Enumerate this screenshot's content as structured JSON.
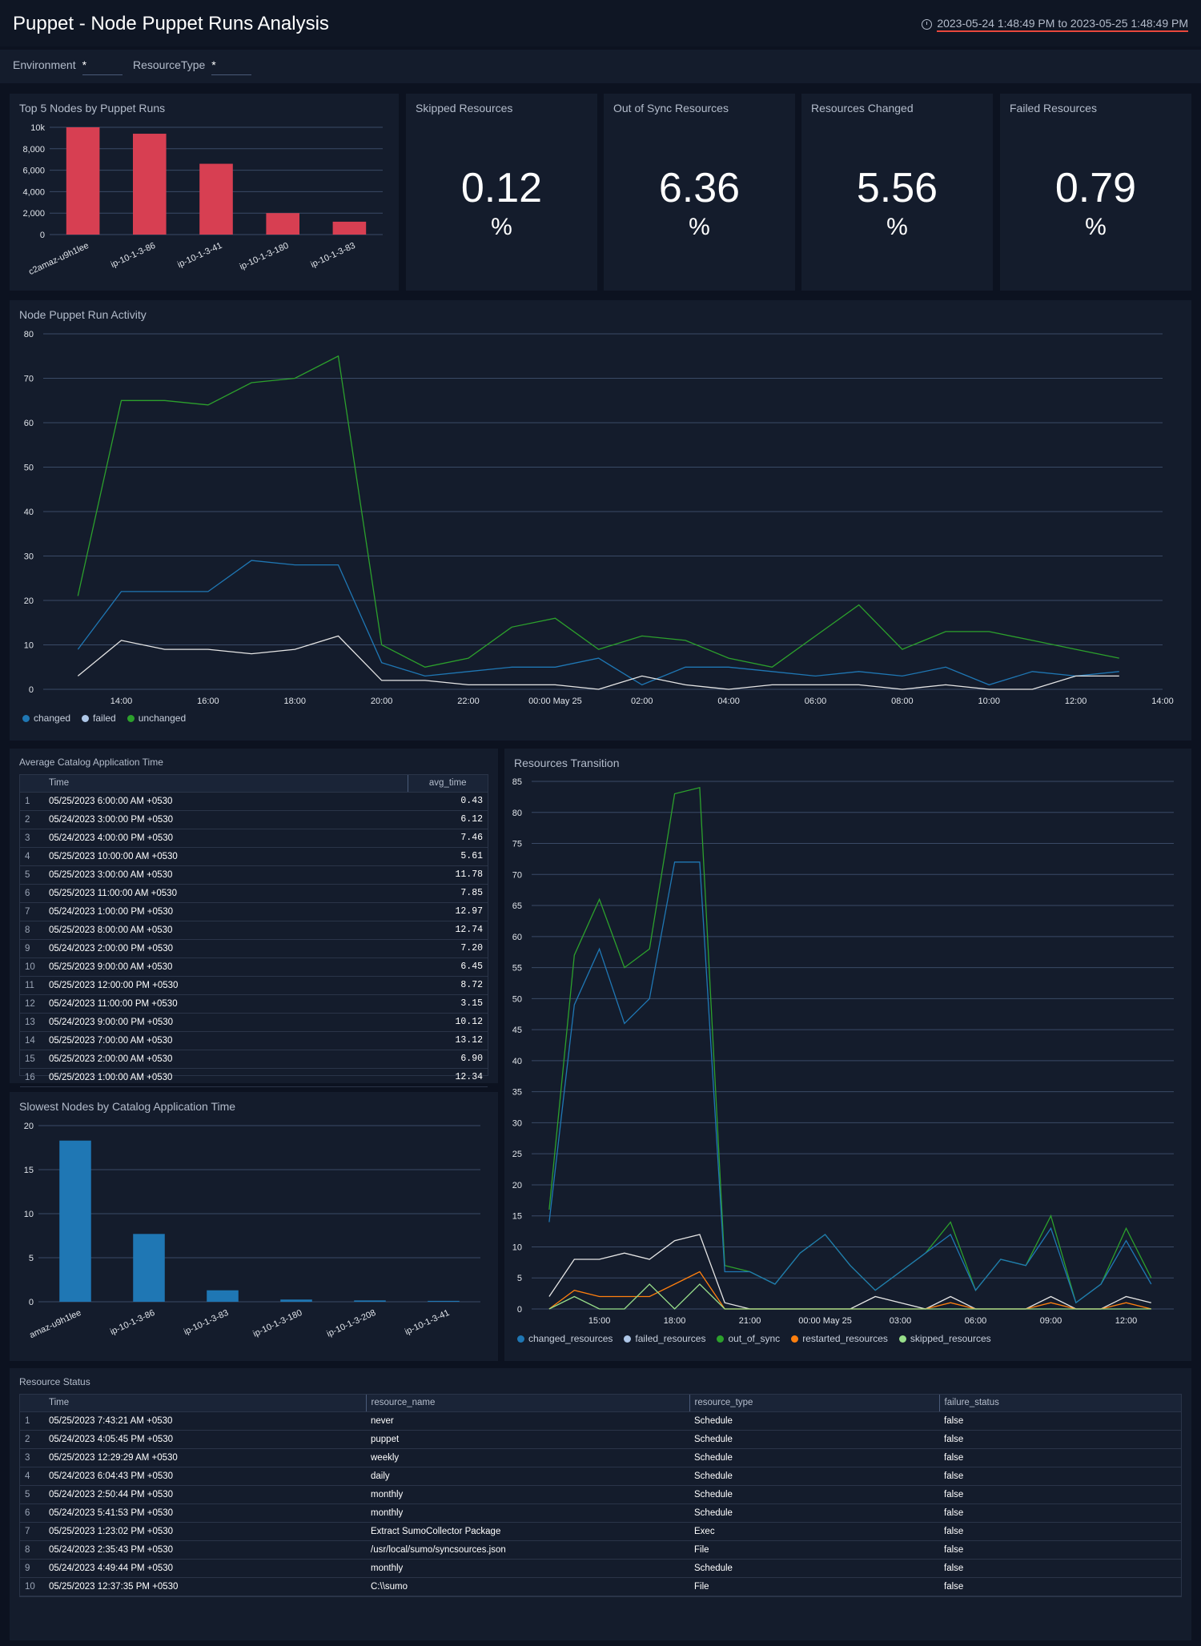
{
  "header": {
    "title": "Puppet - Node Puppet Runs Analysis",
    "time_range": "2023-05-24 1:48:49 PM to 2023-05-25 1:48:49 PM"
  },
  "filters": [
    {
      "label": "Environment",
      "value": "*"
    },
    {
      "label": "ResourceType",
      "value": "*"
    }
  ],
  "stats": [
    {
      "title": "Skipped Resources",
      "value": "0.12",
      "unit": "%"
    },
    {
      "title": "Out of Sync Resources",
      "value": "6.36",
      "unit": "%"
    },
    {
      "title": "Resources Changed",
      "value": "5.56",
      "unit": "%"
    },
    {
      "title": "Failed Resources",
      "value": "0.79",
      "unit": "%"
    }
  ],
  "colors": {
    "bar_red": "#d73f52",
    "bar_blue": "#1f77b4",
    "changed": "#1f77b4",
    "failed": "#aec7e8",
    "unchanged": "#2ca02c",
    "white_line": "#e6e6e6",
    "restarted": "#ff7f0e",
    "skipped": "#98df8a"
  },
  "top_nodes": {
    "title": "Top 5 Nodes by Puppet Runs",
    "chart_data": {
      "type": "bar",
      "categories": [
        "c2amaz-u9h1lee",
        "ip-10-1-3-86",
        "ip-10-1-3-41",
        "ip-10-1-3-180",
        "ip-10-1-3-83"
      ],
      "values": [
        10000,
        9400,
        6600,
        2000,
        1200
      ],
      "ylim": [
        0,
        10000
      ],
      "yticks": [
        0,
        2000,
        4000,
        6000,
        8000,
        10000
      ],
      "ytick_labels": [
        "0",
        "2,000",
        "4,000",
        "6,000",
        "8,000",
        "10k"
      ]
    }
  },
  "activity": {
    "title": "Node Puppet Run Activity",
    "chart_data": {
      "type": "line",
      "x": [
        13,
        14,
        15,
        16,
        17,
        18,
        19,
        20,
        21,
        22,
        23,
        24,
        25,
        26,
        27,
        28,
        29,
        30,
        31,
        32,
        33,
        34,
        35,
        36,
        37
      ],
      "xlim": [
        12.2,
        38
      ],
      "xticks": [
        14,
        16,
        18,
        20,
        22,
        24,
        26,
        28,
        30,
        32,
        34,
        36,
        38
      ],
      "xtick_labels": [
        "14:00",
        "16:00",
        "18:00",
        "20:00",
        "22:00",
        "00:00 May 25",
        "02:00",
        "04:00",
        "06:00",
        "08:00",
        "10:00",
        "12:00",
        "14:00"
      ],
      "ylim": [
        0,
        80
      ],
      "yticks": [
        0,
        10,
        20,
        30,
        40,
        50,
        60,
        70,
        80
      ],
      "series": [
        {
          "name": "unchanged",
          "color": "#2ca02c",
          "values": [
            21,
            65,
            65,
            64,
            69,
            70,
            75,
            10,
            5,
            7,
            14,
            16,
            9,
            12,
            11,
            7,
            5,
            12,
            19,
            9,
            13,
            13,
            11,
            9,
            7
          ]
        },
        {
          "name": "changed",
          "color": "#1f77b4",
          "values": [
            9,
            22,
            22,
            22,
            29,
            28,
            28,
            6,
            3,
            4,
            5,
            5,
            7,
            1,
            5,
            5,
            4,
            3,
            4,
            3,
            5,
            1,
            4,
            3,
            4
          ]
        },
        {
          "name": "failed",
          "color": "#e6e6e6",
          "values": [
            3,
            11,
            9,
            9,
            8,
            9,
            12,
            2,
            2,
            1,
            1,
            1,
            0,
            3,
            1,
            0,
            1,
            1,
            1,
            0,
            1,
            0,
            0,
            3,
            3
          ]
        }
      ],
      "legend": [
        "changed",
        "failed",
        "unchanged"
      ],
      "legend_colors": [
        "#1f77b4",
        "#aec7e8",
        "#2ca02c"
      ]
    }
  },
  "avg_catalog": {
    "title": "Average Catalog Application Time",
    "columns": [
      "Time",
      "avg_time"
    ],
    "rows": [
      [
        "1",
        "05/25/2023 6:00:00 AM +0530",
        "0.43"
      ],
      [
        "2",
        "05/24/2023 3:00:00 PM +0530",
        "6.12"
      ],
      [
        "3",
        "05/24/2023 4:00:00 PM +0530",
        "7.46"
      ],
      [
        "4",
        "05/25/2023 10:00:00 AM +0530",
        "5.61"
      ],
      [
        "5",
        "05/25/2023 3:00:00 AM +0530",
        "11.78"
      ],
      [
        "6",
        "05/25/2023 11:00:00 AM +0530",
        "7.85"
      ],
      [
        "7",
        "05/24/2023 1:00:00 PM +0530",
        "12.97"
      ],
      [
        "8",
        "05/25/2023 8:00:00 AM +0530",
        "12.74"
      ],
      [
        "9",
        "05/24/2023 2:00:00 PM +0530",
        "7.20"
      ],
      [
        "10",
        "05/25/2023 9:00:00 AM +0530",
        "6.45"
      ],
      [
        "11",
        "05/25/2023 12:00:00 PM +0530",
        "8.72"
      ],
      [
        "12",
        "05/24/2023 11:00:00 PM +0530",
        "3.15"
      ],
      [
        "13",
        "05/24/2023 9:00:00 PM +0530",
        "10.12"
      ],
      [
        "14",
        "05/25/2023 7:00:00 AM +0530",
        "13.12"
      ],
      [
        "15",
        "05/25/2023 2:00:00 AM +0530",
        "6.90"
      ],
      [
        "16",
        "05/25/2023 1:00:00 AM +0530",
        "12.34"
      ]
    ]
  },
  "slowest_nodes": {
    "title": "Slowest Nodes by Catalog Application Time",
    "chart_data": {
      "type": "bar",
      "categories": [
        "amaz-u9h1lee",
        "ip-10-1-3-86",
        "ip-10-1-3-83",
        "ip-10-1-3-180",
        "ip-10-1-3-208",
        "ip-10-1-3-41"
      ],
      "values": [
        18.3,
        7.7,
        1.3,
        0.25,
        0.15,
        0.1
      ],
      "ylim": [
        0,
        20
      ],
      "yticks": [
        0,
        5,
        10,
        15,
        20
      ]
    }
  },
  "transition": {
    "title": "Resources Transition",
    "chart_data": {
      "type": "line",
      "x": [
        13,
        14,
        15,
        16,
        17,
        18,
        19,
        20,
        21,
        22,
        23,
        24,
        25,
        26,
        27,
        28,
        29,
        30,
        31,
        32,
        33,
        34,
        35,
        36,
        37
      ],
      "xlim": [
        12.3,
        37.9
      ],
      "xticks": [
        15,
        18,
        21,
        24,
        27,
        30,
        33,
        36
      ],
      "xtick_labels": [
        "15:00",
        "18:00",
        "21:00",
        "00:00 May 25",
        "03:00",
        "06:00",
        "09:00",
        "12:00"
      ],
      "ylim": [
        0,
        85
      ],
      "yticks": [
        0,
        5,
        10,
        15,
        20,
        25,
        30,
        35,
        40,
        45,
        50,
        55,
        60,
        65,
        70,
        75,
        80,
        85
      ],
      "series": [
        {
          "name": "out_of_sync",
          "color": "#2ca02c",
          "values": [
            16,
            57,
            66,
            55,
            58,
            83,
            84,
            7,
            6,
            4,
            9,
            12,
            7,
            3,
            6,
            9,
            14,
            3,
            8,
            7,
            15,
            1,
            4,
            13,
            5
          ]
        },
        {
          "name": "changed_resources",
          "color": "#1f77b4",
          "values": [
            14,
            49,
            58,
            46,
            50,
            72,
            72,
            6,
            6,
            4,
            9,
            12,
            7,
            3,
            6,
            9,
            12,
            3,
            8,
            7,
            13,
            1,
            4,
            11,
            4
          ]
        },
        {
          "name": "failed_resources",
          "color": "#e6e6e6",
          "values": [
            2,
            8,
            8,
            9,
            8,
            11,
            12,
            1,
            0,
            0,
            0,
            0,
            0,
            2,
            1,
            0,
            2,
            0,
            0,
            0,
            2,
            0,
            0,
            2,
            1
          ]
        },
        {
          "name": "restarted_resources",
          "color": "#ff7f0e",
          "values": [
            0,
            3,
            2,
            2,
            2,
            4,
            6,
            0,
            0,
            0,
            0,
            0,
            0,
            0,
            0,
            0,
            1,
            0,
            0,
            0,
            1,
            0,
            0,
            1,
            0
          ]
        },
        {
          "name": "skipped_resources",
          "color": "#98df8a",
          "values": [
            0,
            2,
            0,
            0,
            4,
            0,
            4,
            0,
            0,
            0,
            0,
            0,
            0,
            0,
            0,
            0,
            0,
            0,
            0,
            0,
            0,
            0,
            0,
            0,
            0
          ]
        }
      ],
      "legend": [
        "changed_resources",
        "failed_resources",
        "out_of_sync",
        "restarted_resources",
        "skipped_resources"
      ],
      "legend_colors": [
        "#1f77b4",
        "#aec7e8",
        "#2ca02c",
        "#ff7f0e",
        "#98df8a"
      ]
    }
  },
  "resource_status": {
    "title": "Resource Status",
    "columns": [
      "Time",
      "resource_name",
      "resource_type",
      "failure_status"
    ],
    "rows": [
      [
        "1",
        "05/25/2023 7:43:21 AM +0530",
        "never",
        "Schedule",
        "false"
      ],
      [
        "2",
        "05/24/2023 4:05:45 PM +0530",
        "puppet",
        "Schedule",
        "false"
      ],
      [
        "3",
        "05/25/2023 12:29:29 AM +0530",
        "weekly",
        "Schedule",
        "false"
      ],
      [
        "4",
        "05/24/2023 6:04:43 PM +0530",
        "daily",
        "Schedule",
        "false"
      ],
      [
        "5",
        "05/24/2023 2:50:44 PM +0530",
        "monthly",
        "Schedule",
        "false"
      ],
      [
        "6",
        "05/24/2023 5:41:53 PM +0530",
        "monthly",
        "Schedule",
        "false"
      ],
      [
        "7",
        "05/25/2023 1:23:02 PM +0530",
        "Extract SumoCollector Package",
        "Exec",
        "false"
      ],
      [
        "8",
        "05/24/2023 2:35:43 PM +0530",
        "/usr/local/sumo/syncsources.json",
        "File",
        "false"
      ],
      [
        "9",
        "05/24/2023 4:49:44 PM +0530",
        "monthly",
        "Schedule",
        "false"
      ],
      [
        "10",
        "05/25/2023 12:37:35 PM +0530",
        "C:\\\\sumo",
        "File",
        "false"
      ]
    ]
  }
}
